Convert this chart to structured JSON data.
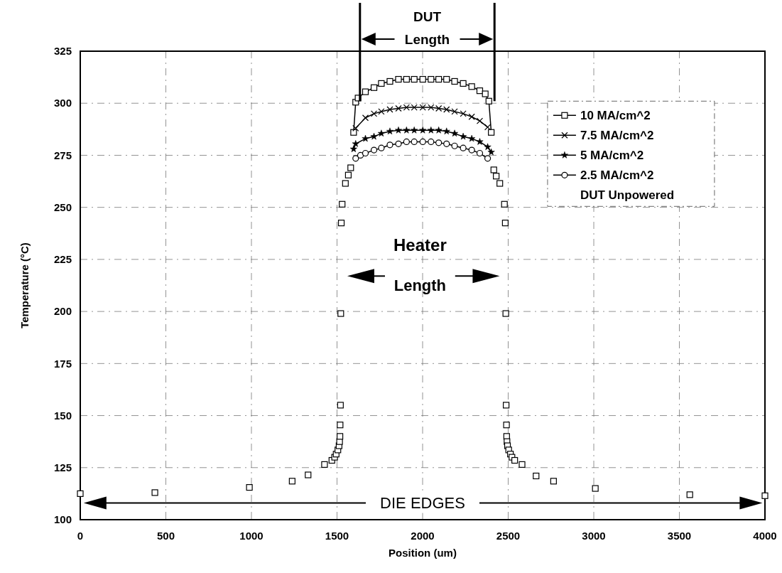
{
  "chart_data": {
    "type": "line",
    "xlabel": "Position (um)",
    "ylabel": "Temperature (°C)",
    "xlim": [
      0,
      4000
    ],
    "xticks": [
      0,
      500,
      1000,
      1500,
      2000,
      2500,
      3000,
      3500,
      4000
    ],
    "ylim": [
      100,
      325
    ],
    "yticks": [
      100,
      125,
      150,
      175,
      200,
      225,
      250,
      275,
      300,
      325
    ],
    "grid": true,
    "legend": "top right",
    "line_style": "solid",
    "annotations": [
      "DUT",
      "Length",
      "Heater",
      "Length",
      "DIE EDGES",
      "DUT Unpowered"
    ],
    "series": [
      {
        "name": "10 MA/cm^2",
        "color": "#000000",
        "marker": "square",
        "x": [
          1597,
          1609,
          1623,
          1666,
          1716,
          1759,
          1809,
          1859,
          1906,
          1951,
          2001,
          2049,
          2094,
          2140,
          2187,
          2237,
          2287,
          2334,
          2366,
          2387,
          2401
        ],
        "values": [
          286,
          300.5,
          302.5,
          305.5,
          307.5,
          309.5,
          310.5,
          311.5,
          311.5,
          311.5,
          311.5,
          311.5,
          311.5,
          311.5,
          310.5,
          309.5,
          308,
          306,
          304.5,
          301,
          286
        ]
      },
      {
        "name": "7.5 MA/cm^2",
        "color": "#000000",
        "marker": "cross",
        "x": [
          1609,
          1666,
          1716,
          1759,
          1809,
          1859,
          1906,
          1951,
          2001,
          2049,
          2094,
          2140,
          2187,
          2237,
          2287,
          2334,
          2380
        ],
        "values": [
          288,
          293,
          295,
          296,
          297,
          297.5,
          298,
          298,
          298,
          298,
          297.5,
          297,
          296,
          295,
          293.5,
          291.5,
          288.5
        ]
      },
      {
        "name": "5 MA/cm^2",
        "color": "#000000",
        "marker": "star",
        "x": [
          1597,
          1609,
          1666,
          1716,
          1759,
          1809,
          1859,
          1906,
          1951,
          2001,
          2049,
          2094,
          2140,
          2187,
          2237,
          2287,
          2334,
          2380,
          2401
        ],
        "values": [
          278,
          280.5,
          283,
          284,
          285.5,
          286.5,
          287,
          287,
          287,
          287,
          287,
          287,
          286.5,
          285.5,
          284,
          283,
          281.5,
          279,
          276.5
        ]
      },
      {
        "name": "2.5 MA/cm^2",
        "color": "#000000",
        "marker": "circle",
        "x": [
          1609,
          1637,
          1666,
          1716,
          1759,
          1809,
          1859,
          1906,
          1951,
          2001,
          2049,
          2094,
          2140,
          2187,
          2237,
          2287,
          2334,
          2380
        ],
        "values": [
          273.5,
          275,
          276,
          277.5,
          278.5,
          280,
          280.5,
          281.5,
          281.5,
          281.5,
          281.5,
          281,
          280.5,
          279.5,
          278.5,
          277.5,
          276,
          273.5
        ]
      },
      {
        "type": "scatter",
        "color": "#000000",
        "marker": "square",
        "x": [
          0,
          436,
          988,
          1238,
          1331,
          1427,
          1470,
          1486,
          1495,
          1505,
          1512,
          1515,
          1517,
          1518,
          1520,
          1522,
          1525,
          1530,
          1549,
          1566,
          1580,
          2416,
          2430,
          2451,
          2478,
          2483,
          2486,
          2488,
          2490,
          2491,
          2493,
          2496,
          2503,
          2513,
          2522,
          2538,
          2581,
          2663,
          2765,
          3009,
          3561,
          4000
        ],
        "values": [
          112.5,
          113,
          115.5,
          118.5,
          121.5,
          126.5,
          128.5,
          130,
          131.5,
          133.5,
          135.5,
          137.5,
          140,
          145.5,
          155,
          199,
          242.5,
          251.5,
          261.5,
          265.5,
          269,
          268,
          265,
          261.5,
          251.5,
          242.5,
          199,
          155,
          145.5,
          140,
          137.5,
          135.5,
          133.5,
          131.5,
          130,
          128.5,
          126.5,
          121,
          118.5,
          115,
          112,
          111.5
        ]
      }
    ]
  }
}
